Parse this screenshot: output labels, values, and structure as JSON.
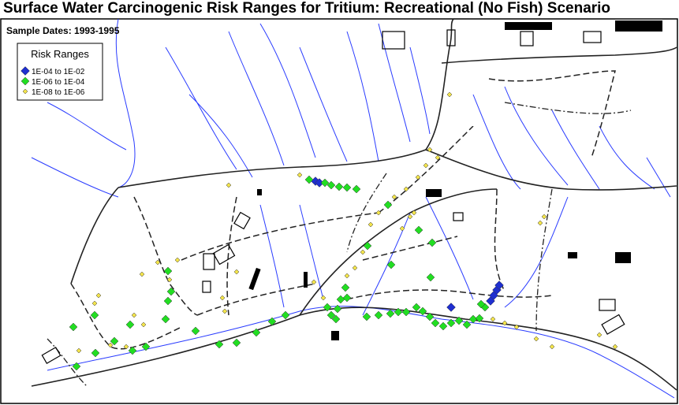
{
  "title": "Surface Water Carcinogenic Risk Ranges for Tritium: Recreational (No Fish) Scenario",
  "subtitle": "Sample Dates: 1993-1995",
  "legend": {
    "title": "Risk Ranges",
    "items": [
      {
        "label": "1E-04 to 1E-02",
        "color": "#1f2fd0"
      },
      {
        "label": "1E-06 to 1E-04",
        "color": "#22dd22"
      },
      {
        "label": "1E-08 to 1E-06",
        "color": "#f2e34a"
      }
    ]
  }
}
